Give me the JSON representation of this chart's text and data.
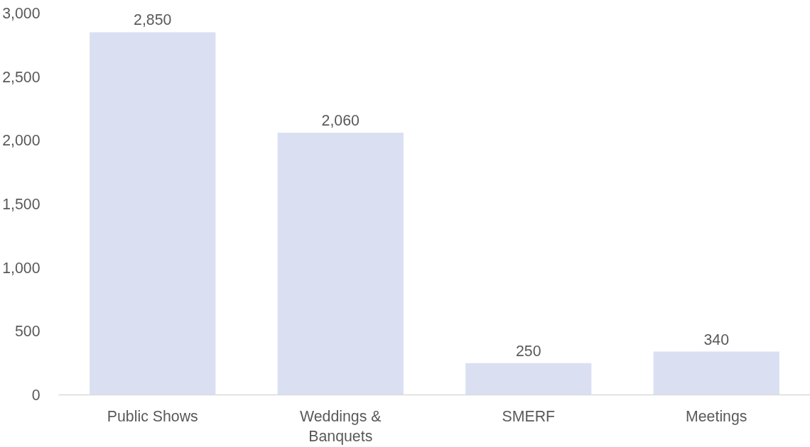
{
  "chart_data": {
    "type": "bar",
    "categories": [
      "Public Shows",
      "Weddings & Banquets",
      "SMERF",
      "Meetings"
    ],
    "values": [
      2850,
      2060,
      250,
      340
    ],
    "color": "#dae0f2",
    "ylim": [
      0,
      3000
    ],
    "yticks": [
      0,
      500,
      {
        "value": 1000,
        "label": "1,000"
      },
      {
        "value": 1500,
        "label": "1,500"
      },
      {
        "value": 2000,
        "label": "2,000"
      },
      {
        "value": 2500,
        "label": "2,500"
      },
      {
        "value": 3000,
        "label": "3,000"
      }
    ],
    "grid": false,
    "value_labels": [
      "2,850",
      "2,060",
      "250",
      "340"
    ]
  }
}
